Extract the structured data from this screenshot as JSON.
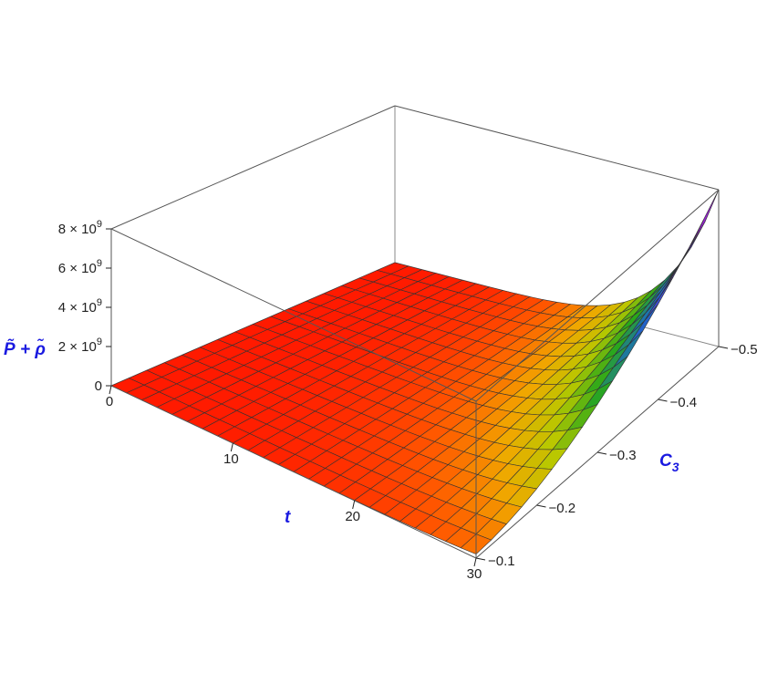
{
  "chart_data": {
    "type": "surface3d",
    "title": "",
    "xlabel": "t",
    "ylabel": "C",
    "ylabel_sub": "3",
    "zlabel": "P̃ + ρ̃",
    "xlim": [
      0,
      30
    ],
    "ylim": [
      -0.1,
      -0.5
    ],
    "zlim": [
      0,
      8000000000
    ],
    "x_ticks": [
      {
        "value": 0,
        "label": "0"
      },
      {
        "value": 10,
        "label": "10"
      },
      {
        "value": 20,
        "label": "20"
      },
      {
        "value": 30,
        "label": "30"
      }
    ],
    "y_ticks": [
      {
        "value": -0.1,
        "label": "−0.1"
      },
      {
        "value": -0.2,
        "label": "−0.2"
      },
      {
        "value": -0.3,
        "label": "−0.3"
      },
      {
        "value": -0.4,
        "label": "−0.4"
      },
      {
        "value": -0.5,
        "label": "−0.5"
      }
    ],
    "z_ticks": [
      {
        "value": 0,
        "base": "0",
        "exp": ""
      },
      {
        "value": 2000000000,
        "base": "2 × 10",
        "exp": "9"
      },
      {
        "value": 4000000000,
        "base": "4 × 10",
        "exp": "9"
      },
      {
        "value": 6000000000,
        "base": "6 × 10",
        "exp": "9"
      },
      {
        "value": 8000000000,
        "base": "8 × 10",
        "exp": "9"
      }
    ],
    "surface_samples": {
      "t": [
        0,
        10,
        20,
        25,
        28,
        30
      ],
      "C3": [
        -0.1,
        -0.3,
        -0.5
      ],
      "z_at_C3_-0.1": [
        0,
        0,
        0,
        20000000,
        80000000,
        200000000
      ],
      "z_at_C3_-0.3": [
        0,
        0,
        100000000,
        500000000,
        1200000000,
        2100000000
      ],
      "z_at_C3_-0.5": [
        0,
        0,
        500000000,
        2000000000,
        5000000000,
        8000000000
      ]
    },
    "colormap": [
      "#ff1a00",
      "#ff5a00",
      "#f0a800",
      "#b8c800",
      "#2aa81a",
      "#1a6ac8",
      "#6a2ad0",
      "#c81ac8"
    ],
    "grid": false,
    "legend": "none"
  }
}
